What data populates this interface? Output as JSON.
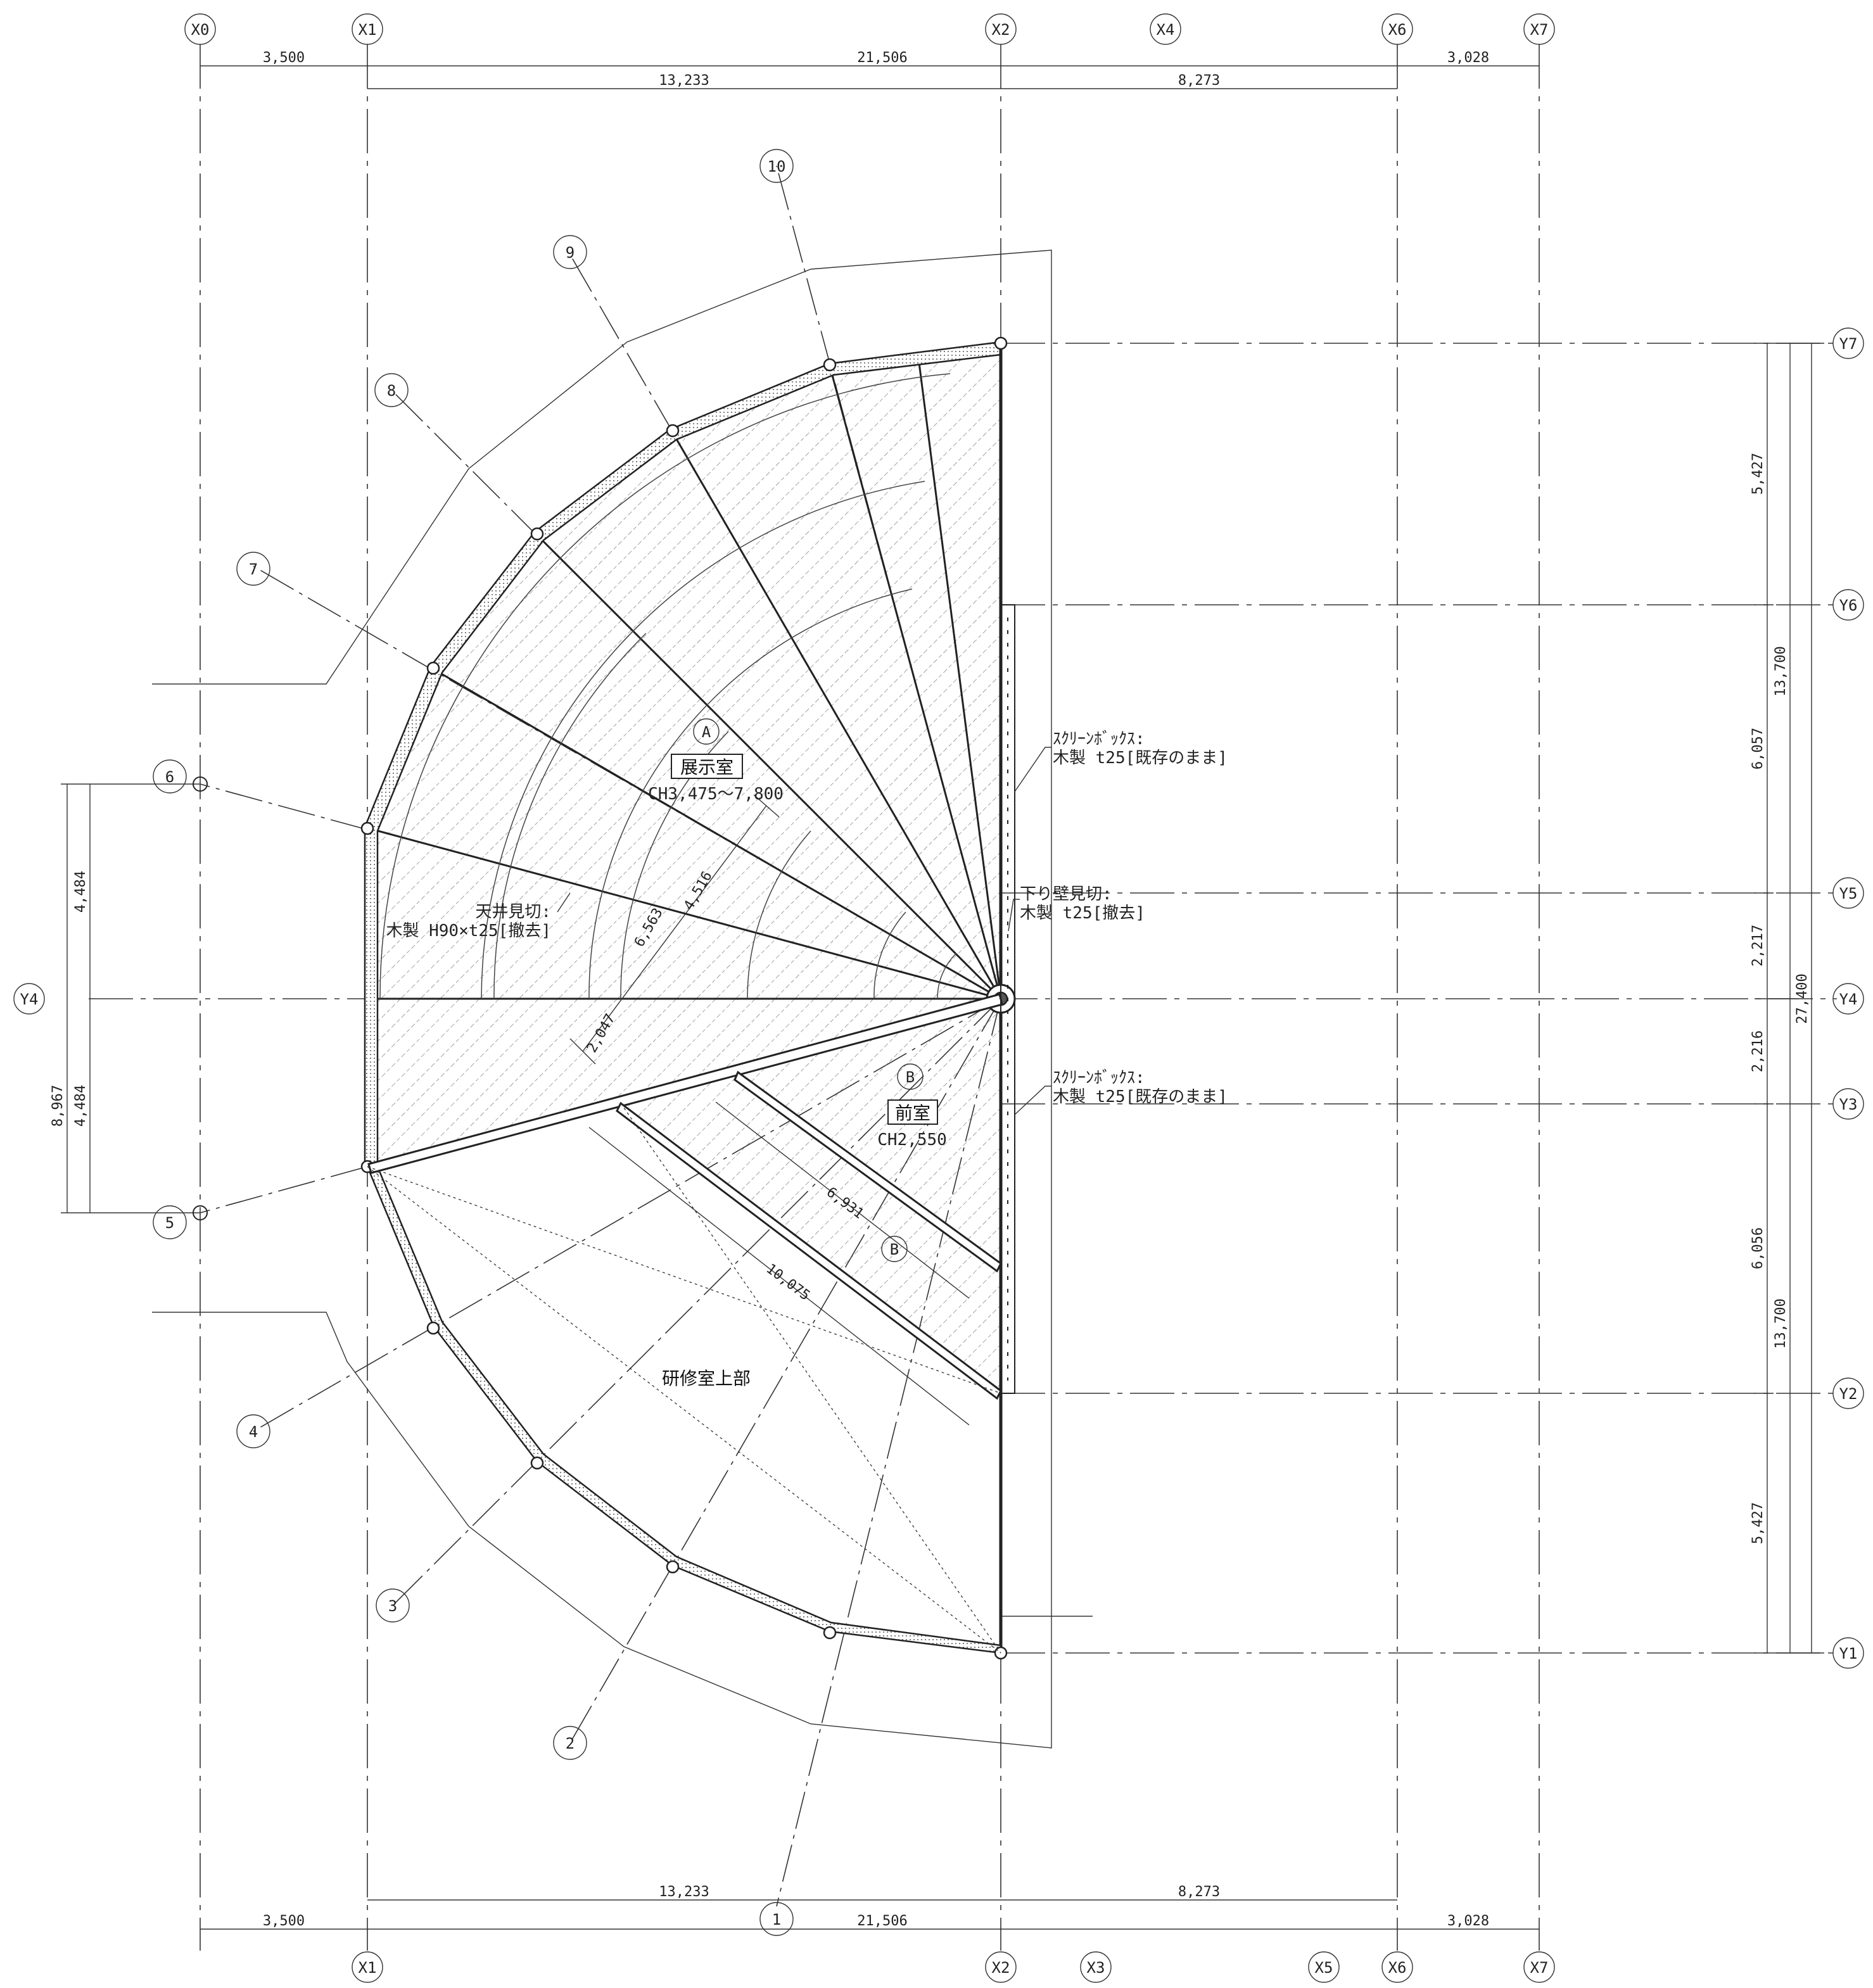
{
  "grid": {
    "x_top": {
      "X0": "X0",
      "X1": "X1",
      "X2": "X2",
      "X4": "X4",
      "X6": "X6",
      "X7": "X7"
    },
    "x_bottom": {
      "X1": "X1",
      "X2": "X2",
      "X3": "X3",
      "X5": "X5",
      "X6": "X6",
      "X7": "X7"
    },
    "y": {
      "Y1": "Y1",
      "Y2": "Y2",
      "Y3": "Y3",
      "Y4": "Y4",
      "Y5": "Y5",
      "Y6": "Y6",
      "Y7": "Y7"
    },
    "y_left": {
      "Y4": "Y4"
    }
  },
  "radial_axes": [
    "1",
    "2",
    "3",
    "4",
    "5",
    "6",
    "7",
    "8",
    "9",
    "10"
  ],
  "dimensions": {
    "top_row1": {
      "x0_x1": "3,500",
      "x1_x6": "21,506",
      "x6_x7": "3,028"
    },
    "top_row2": {
      "x1_x2": "13,233",
      "x2_x6": "8,273"
    },
    "bottom_row1": {
      "x1_x2": "13,233",
      "x2_x6": "8,273"
    },
    "bottom_row2": {
      "x0_x1": "3,500",
      "x1_x6": "21,506",
      "x6_x7": "3,028"
    },
    "right_col1": {
      "y7_y6": "5,427",
      "y6_y5": "6,057",
      "y5_y4": "2,217",
      "y4_y3": "2,216",
      "y3_y2": "6,056",
      "y2_y1": "5,427"
    },
    "right_col2": {
      "y7_y4": "13,700",
      "y4_y1": "13,700"
    },
    "right_col3": {
      "total": "27,400"
    },
    "left_col1": {
      "upper": "4,484",
      "lower": "4,484"
    },
    "left_col2": {
      "total": "8,967"
    },
    "radial": {
      "r1": "6,563",
      "r2": "4,516",
      "r3": "2,047",
      "r4": "6,931",
      "r5": "10,075"
    }
  },
  "rooms": {
    "A": {
      "tag": "A",
      "name": "展示室",
      "ceiling": "CH3,475～7,800"
    },
    "B": {
      "tag": "B",
      "name": "前室",
      "ceiling": "CH2,550"
    },
    "B2": {
      "tag": "B"
    },
    "study": {
      "name": "研修室上部"
    }
  },
  "notes": {
    "screen_upper_l1": "ｽｸﾘｰﾝﾎﾞｯｸｽ:",
    "screen_upper_l2": "木製 t25[既存のまま]",
    "drop_wall_l1": "下り壁見切:",
    "drop_wall_l2": "木製 t25[撤去]",
    "ceiling_l1": "天井見切:",
    "ceiling_l2": "木製 H90×t25[撤去]",
    "screen_lower_l1": "ｽｸﾘｰﾝﾎﾞｯｸｽ:",
    "screen_lower_l2": "木製 t25[既存のまま]"
  }
}
